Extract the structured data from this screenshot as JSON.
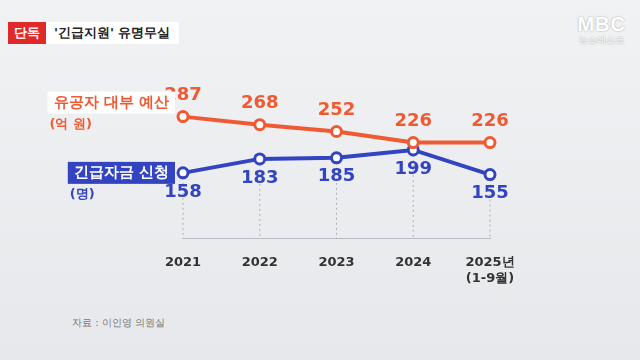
{
  "chart_data": {
    "type": "line",
    "title": "'긴급지원' 유명무실",
    "annotations": [
      "단독",
      "자료 : 이인영 의원실",
      "MBC",
      "뉴스데스크"
    ],
    "categories": [
      "2021",
      "2022",
      "2023",
      "2024",
      "2025년 (1-9월)"
    ],
    "series": [
      {
        "name": "유공자 대부 예산 (억 원)",
        "color": "#ef5a32",
        "marker": "circle",
        "values": [
          287,
          268,
          252,
          226,
          226
        ]
      },
      {
        "name": "긴급자금 신청 (명)",
        "color": "#3344c0",
        "marker": "circle",
        "axis": "y2",
        "values": [
          158,
          183,
          185,
          199,
          155
        ]
      }
    ],
    "ylim": [
      0,
      420
    ],
    "y2lim": [
      40,
      360
    ],
    "tick_labels": "x",
    "data_labels": true,
    "grid": false
  }
}
